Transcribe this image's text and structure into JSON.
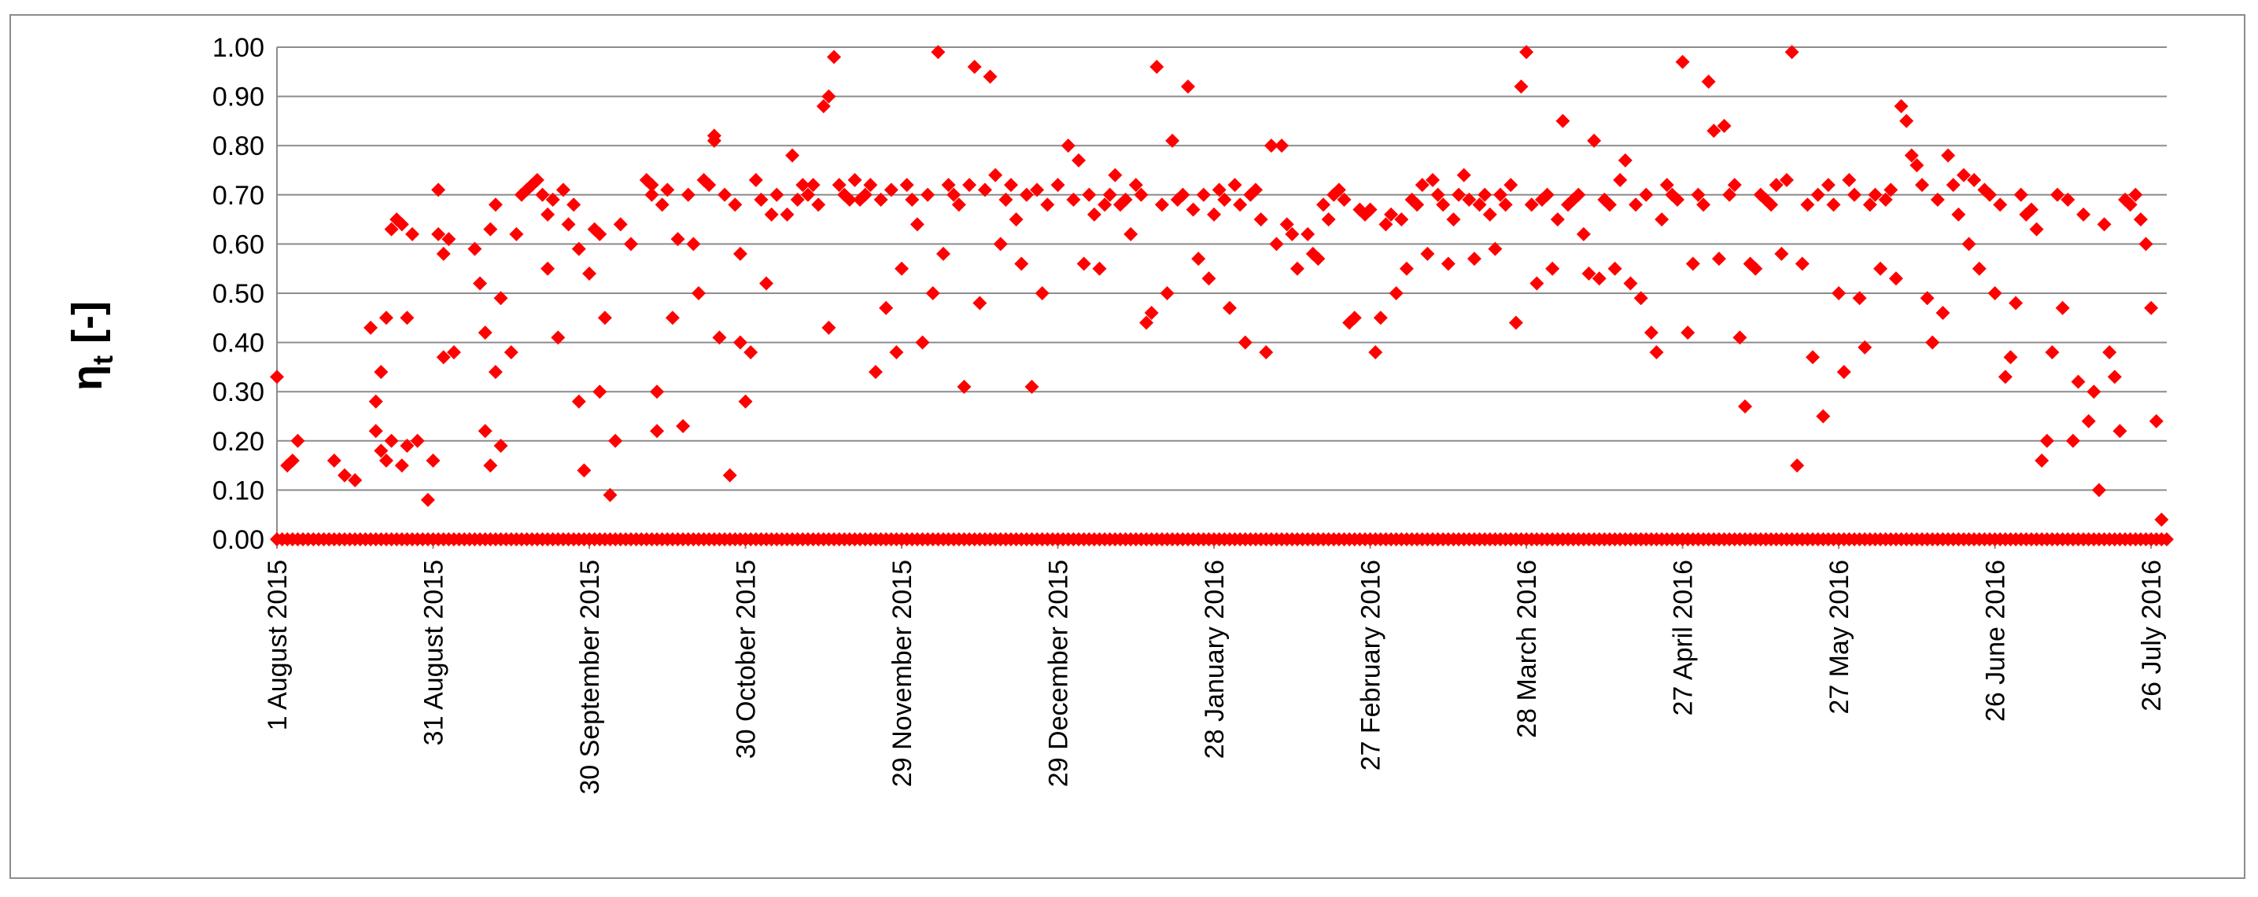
{
  "chart_data": {
    "type": "scatter",
    "title": "",
    "xlabel": "",
    "ylabel": "η",
    "ylabel_sub": "t",
    "ylabel_suffix": " [-]",
    "xlim_days": [
      0,
      363
    ],
    "ylim": [
      0,
      1
    ],
    "yticks": [
      "0.00",
      "0.10",
      "0.20",
      "0.30",
      "0.40",
      "0.50",
      "0.60",
      "0.70",
      "0.80",
      "0.90",
      "1.00"
    ],
    "xticks": [
      "1 August 2015",
      "31 August 2015",
      "30 September 2015",
      "30 October 2015",
      "29 November 2015",
      "29 December 2015",
      "28 January 2016",
      "27 February 2016",
      "28 March 2016",
      "27 April 2016",
      "27 May 2016",
      "26 June 2016",
      "26 July 2016"
    ],
    "grid": "horizontal",
    "marker_color": "#ff0000",
    "marker": "diamond",
    "x_unit": "days since 1 August 2015",
    "points": [
      [
        0,
        0.33
      ],
      [
        2,
        0.15
      ],
      [
        3,
        0.16
      ],
      [
        4,
        0.2
      ],
      [
        11,
        0.16
      ],
      [
        13,
        0.13
      ],
      [
        15,
        0.12
      ],
      [
        18,
        0.43
      ],
      [
        19,
        0.28
      ],
      [
        19,
        0.22
      ],
      [
        20,
        0.18
      ],
      [
        20,
        0.34
      ],
      [
        21,
        0.45
      ],
      [
        21,
        0.16
      ],
      [
        22,
        0.63
      ],
      [
        22,
        0.2
      ],
      [
        23,
        0.65
      ],
      [
        24,
        0.64
      ],
      [
        24,
        0.15
      ],
      [
        25,
        0.19
      ],
      [
        25,
        0.45
      ],
      [
        26,
        0.62
      ],
      [
        27,
        0.2
      ],
      [
        29,
        0.08
      ],
      [
        30,
        0.16
      ],
      [
        31,
        0.71
      ],
      [
        31,
        0.62
      ],
      [
        32,
        0.37
      ],
      [
        32,
        0.58
      ],
      [
        33,
        0.61
      ],
      [
        34,
        0.38
      ],
      [
        38,
        0.59
      ],
      [
        39,
        0.52
      ],
      [
        40,
        0.42
      ],
      [
        40,
        0.22
      ],
      [
        41,
        0.15
      ],
      [
        41,
        0.63
      ],
      [
        42,
        0.68
      ],
      [
        42,
        0.34
      ],
      [
        43,
        0.49
      ],
      [
        43,
        0.19
      ],
      [
        45,
        0.38
      ],
      [
        46,
        0.62
      ],
      [
        47,
        0.7
      ],
      [
        48,
        0.71
      ],
      [
        49,
        0.72
      ],
      [
        50,
        0.73
      ],
      [
        51,
        0.7
      ],
      [
        52,
        0.55
      ],
      [
        52,
        0.66
      ],
      [
        53,
        0.69
      ],
      [
        54,
        0.41
      ],
      [
        55,
        0.71
      ],
      [
        56,
        0.64
      ],
      [
        57,
        0.68
      ],
      [
        58,
        0.59
      ],
      [
        58,
        0.28
      ],
      [
        59,
        0.14
      ],
      [
        60,
        0.54
      ],
      [
        61,
        0.63
      ],
      [
        62,
        0.62
      ],
      [
        62,
        0.3
      ],
      [
        63,
        0.45
      ],
      [
        64,
        0.09
      ],
      [
        65,
        0.2
      ],
      [
        66,
        0.64
      ],
      [
        68,
        0.6
      ],
      [
        71,
        0.73
      ],
      [
        72,
        0.72
      ],
      [
        72,
        0.7
      ],
      [
        73,
        0.3
      ],
      [
        73,
        0.22
      ],
      [
        74,
        0.68
      ],
      [
        75,
        0.71
      ],
      [
        76,
        0.45
      ],
      [
        77,
        0.61
      ],
      [
        78,
        0.23
      ],
      [
        79,
        0.7
      ],
      [
        80,
        0.6
      ],
      [
        81,
        0.5
      ],
      [
        82,
        0.73
      ],
      [
        83,
        0.72
      ],
      [
        84,
        0.82
      ],
      [
        84,
        0.81
      ],
      [
        85,
        0.41
      ],
      [
        86,
        0.7
      ],
      [
        87,
        0.13
      ],
      [
        88,
        0.68
      ],
      [
        89,
        0.4
      ],
      [
        89,
        0.58
      ],
      [
        90,
        0.28
      ],
      [
        91,
        0.38
      ],
      [
        92,
        0.73
      ],
      [
        93,
        0.69
      ],
      [
        94,
        0.52
      ],
      [
        95,
        0.66
      ],
      [
        96,
        0.7
      ],
      [
        98,
        0.66
      ],
      [
        99,
        0.78
      ],
      [
        100,
        0.69
      ],
      [
        101,
        0.72
      ],
      [
        102,
        0.7
      ],
      [
        103,
        0.72
      ],
      [
        104,
        0.68
      ],
      [
        105,
        0.88
      ],
      [
        106,
        0.9
      ],
      [
        106,
        0.43
      ],
      [
        107,
        0.98
      ],
      [
        108,
        0.72
      ],
      [
        109,
        0.7
      ],
      [
        110,
        0.69
      ],
      [
        111,
        0.73
      ],
      [
        112,
        0.69
      ],
      [
        113,
        0.7
      ],
      [
        114,
        0.72
      ],
      [
        115,
        0.34
      ],
      [
        116,
        0.69
      ],
      [
        117,
        0.47
      ],
      [
        118,
        0.71
      ],
      [
        119,
        0.38
      ],
      [
        120,
        0.55
      ],
      [
        121,
        0.72
      ],
      [
        122,
        0.69
      ],
      [
        123,
        0.64
      ],
      [
        124,
        0.4
      ],
      [
        125,
        0.7
      ],
      [
        126,
        0.5
      ],
      [
        127,
        0.99
      ],
      [
        128,
        0.58
      ],
      [
        129,
        0.72
      ],
      [
        130,
        0.7
      ],
      [
        131,
        0.68
      ],
      [
        132,
        0.31
      ],
      [
        133,
        0.72
      ],
      [
        134,
        0.96
      ],
      [
        135,
        0.48
      ],
      [
        136,
        0.71
      ],
      [
        137,
        0.94
      ],
      [
        138,
        0.74
      ],
      [
        139,
        0.6
      ],
      [
        140,
        0.69
      ],
      [
        141,
        0.72
      ],
      [
        142,
        0.65
      ],
      [
        143,
        0.56
      ],
      [
        144,
        0.7
      ],
      [
        145,
        0.31
      ],
      [
        146,
        0.71
      ],
      [
        147,
        0.5
      ],
      [
        148,
        0.68
      ],
      [
        150,
        0.72
      ],
      [
        152,
        0.8
      ],
      [
        153,
        0.69
      ],
      [
        154,
        0.77
      ],
      [
        155,
        0.56
      ],
      [
        156,
        0.7
      ],
      [
        157,
        0.66
      ],
      [
        158,
        0.55
      ],
      [
        159,
        0.68
      ],
      [
        160,
        0.7
      ],
      [
        161,
        0.74
      ],
      [
        162,
        0.68
      ],
      [
        163,
        0.69
      ],
      [
        164,
        0.62
      ],
      [
        165,
        0.72
      ],
      [
        166,
        0.7
      ],
      [
        167,
        0.44
      ],
      [
        168,
        0.46
      ],
      [
        169,
        0.96
      ],
      [
        170,
        0.68
      ],
      [
        171,
        0.5
      ],
      [
        172,
        0.81
      ],
      [
        173,
        0.69
      ],
      [
        174,
        0.7
      ],
      [
        175,
        0.92
      ],
      [
        176,
        0.67
      ],
      [
        177,
        0.57
      ],
      [
        178,
        0.7
      ],
      [
        179,
        0.53
      ],
      [
        180,
        0.66
      ],
      [
        181,
        0.71
      ],
      [
        182,
        0.69
      ],
      [
        183,
        0.47
      ],
      [
        184,
        0.72
      ],
      [
        185,
        0.68
      ],
      [
        186,
        0.4
      ],
      [
        187,
        0.7
      ],
      [
        188,
        0.71
      ],
      [
        189,
        0.65
      ],
      [
        190,
        0.38
      ],
      [
        191,
        0.8
      ],
      [
        192,
        0.6
      ],
      [
        193,
        0.8
      ],
      [
        194,
        0.64
      ],
      [
        195,
        0.62
      ],
      [
        196,
        0.55
      ],
      [
        198,
        0.62
      ],
      [
        199,
        0.58
      ],
      [
        200,
        0.57
      ],
      [
        201,
        0.68
      ],
      [
        202,
        0.65
      ],
      [
        203,
        0.7
      ],
      [
        204,
        0.71
      ],
      [
        205,
        0.69
      ],
      [
        206,
        0.44
      ],
      [
        207,
        0.45
      ],
      [
        208,
        0.67
      ],
      [
        209,
        0.66
      ],
      [
        210,
        0.67
      ],
      [
        211,
        0.38
      ],
      [
        212,
        0.45
      ],
      [
        213,
        0.64
      ],
      [
        214,
        0.66
      ],
      [
        215,
        0.5
      ],
      [
        216,
        0.65
      ],
      [
        217,
        0.55
      ],
      [
        218,
        0.69
      ],
      [
        219,
        0.68
      ],
      [
        220,
        0.72
      ],
      [
        221,
        0.58
      ],
      [
        222,
        0.73
      ],
      [
        223,
        0.7
      ],
      [
        224,
        0.68
      ],
      [
        225,
        0.56
      ],
      [
        226,
        0.65
      ],
      [
        227,
        0.7
      ],
      [
        228,
        0.74
      ],
      [
        229,
        0.69
      ],
      [
        230,
        0.57
      ],
      [
        231,
        0.68
      ],
      [
        232,
        0.7
      ],
      [
        233,
        0.66
      ],
      [
        234,
        0.59
      ],
      [
        235,
        0.7
      ],
      [
        236,
        0.68
      ],
      [
        237,
        0.72
      ],
      [
        238,
        0.44
      ],
      [
        239,
        0.92
      ],
      [
        240,
        0.99
      ],
      [
        241,
        0.68
      ],
      [
        242,
        0.52
      ],
      [
        243,
        0.69
      ],
      [
        244,
        0.7
      ],
      [
        245,
        0.55
      ],
      [
        246,
        0.65
      ],
      [
        247,
        0.85
      ],
      [
        248,
        0.68
      ],
      [
        249,
        0.69
      ],
      [
        250,
        0.7
      ],
      [
        251,
        0.62
      ],
      [
        252,
        0.54
      ],
      [
        253,
        0.81
      ],
      [
        254,
        0.53
      ],
      [
        255,
        0.69
      ],
      [
        256,
        0.68
      ],
      [
        257,
        0.55
      ],
      [
        258,
        0.73
      ],
      [
        259,
        0.77
      ],
      [
        260,
        0.52
      ],
      [
        261,
        0.68
      ],
      [
        262,
        0.49
      ],
      [
        263,
        0.7
      ],
      [
        264,
        0.42
      ],
      [
        265,
        0.38
      ],
      [
        266,
        0.65
      ],
      [
        267,
        0.72
      ],
      [
        268,
        0.7
      ],
      [
        269,
        0.69
      ],
      [
        270,
        0.97
      ],
      [
        271,
        0.42
      ],
      [
        272,
        0.56
      ],
      [
        273,
        0.7
      ],
      [
        274,
        0.68
      ],
      [
        275,
        0.93
      ],
      [
        276,
        0.83
      ],
      [
        277,
        0.57
      ],
      [
        278,
        0.84
      ],
      [
        279,
        0.7
      ],
      [
        280,
        0.72
      ],
      [
        281,
        0.41
      ],
      [
        282,
        0.27
      ],
      [
        283,
        0.56
      ],
      [
        284,
        0.55
      ],
      [
        285,
        0.7
      ],
      [
        286,
        0.69
      ],
      [
        287,
        0.68
      ],
      [
        288,
        0.72
      ],
      [
        289,
        0.58
      ],
      [
        290,
        0.73
      ],
      [
        291,
        0.99
      ],
      [
        292,
        0.15
      ],
      [
        293,
        0.56
      ],
      [
        294,
        0.68
      ],
      [
        295,
        0.37
      ],
      [
        296,
        0.7
      ],
      [
        297,
        0.25
      ],
      [
        298,
        0.72
      ],
      [
        299,
        0.68
      ],
      [
        300,
        0.5
      ],
      [
        301,
        0.34
      ],
      [
        302,
        0.73
      ],
      [
        303,
        0.7
      ],
      [
        304,
        0.49
      ],
      [
        305,
        0.39
      ],
      [
        306,
        0.68
      ],
      [
        307,
        0.7
      ],
      [
        308,
        0.55
      ],
      [
        309,
        0.69
      ],
      [
        310,
        0.71
      ],
      [
        311,
        0.53
      ],
      [
        312,
        0.88
      ],
      [
        313,
        0.85
      ],
      [
        314,
        0.78
      ],
      [
        315,
        0.76
      ],
      [
        316,
        0.72
      ],
      [
        317,
        0.49
      ],
      [
        318,
        0.4
      ],
      [
        319,
        0.69
      ],
      [
        320,
        0.46
      ],
      [
        321,
        0.78
      ],
      [
        322,
        0.72
      ],
      [
        323,
        0.66
      ],
      [
        324,
        0.74
      ],
      [
        325,
        0.6
      ],
      [
        326,
        0.73
      ],
      [
        327,
        0.55
      ],
      [
        328,
        0.71
      ],
      [
        329,
        0.7
      ],
      [
        330,
        0.5
      ],
      [
        331,
        0.68
      ],
      [
        332,
        0.33
      ],
      [
        333,
        0.37
      ],
      [
        334,
        0.48
      ],
      [
        335,
        0.7
      ],
      [
        336,
        0.66
      ],
      [
        337,
        0.67
      ],
      [
        338,
        0.63
      ],
      [
        339,
        0.16
      ],
      [
        340,
        0.2
      ],
      [
        341,
        0.38
      ],
      [
        342,
        0.7
      ],
      [
        343,
        0.47
      ],
      [
        344,
        0.69
      ],
      [
        345,
        0.2
      ],
      [
        346,
        0.32
      ],
      [
        347,
        0.66
      ],
      [
        348,
        0.24
      ],
      [
        349,
        0.3
      ],
      [
        350,
        0.1
      ],
      [
        351,
        0.64
      ],
      [
        352,
        0.38
      ],
      [
        353,
        0.33
      ],
      [
        354,
        0.22
      ],
      [
        355,
        0.69
      ],
      [
        356,
        0.68
      ],
      [
        357,
        0.7
      ],
      [
        358,
        0.65
      ],
      [
        359,
        0.6
      ],
      [
        360,
        0.47
      ],
      [
        361,
        0.24
      ],
      [
        362,
        0.04
      ]
    ]
  }
}
